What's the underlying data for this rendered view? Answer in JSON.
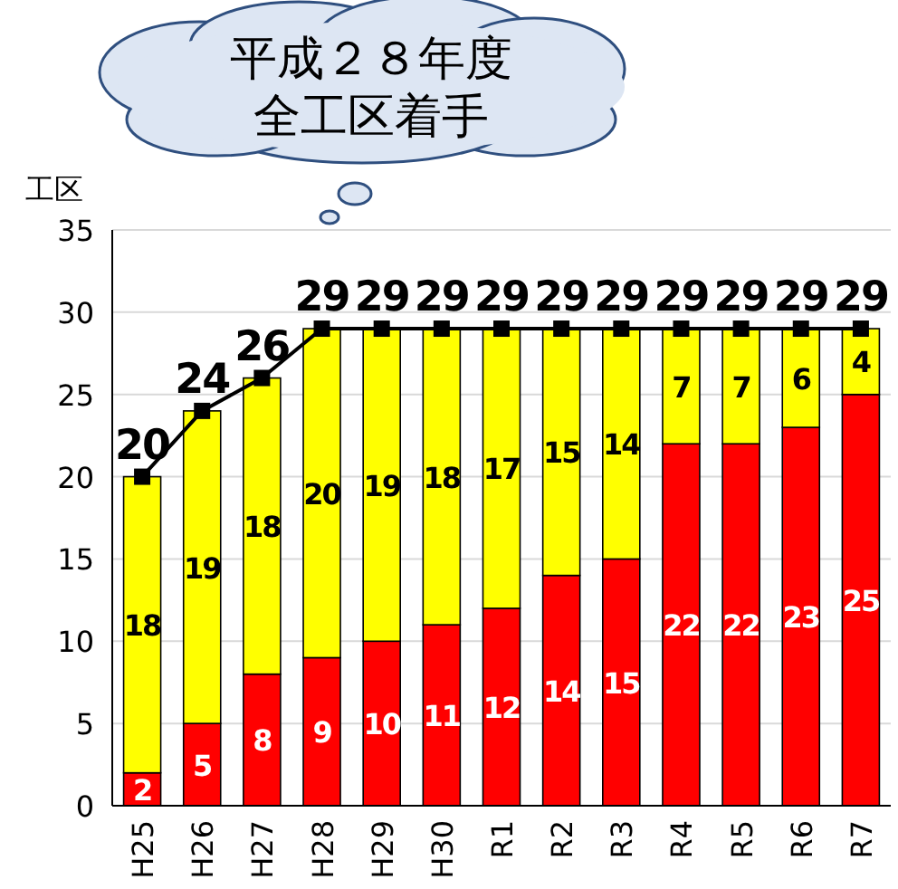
{
  "chart_data": {
    "type": "bar",
    "stacked": true,
    "ylabel": "工区",
    "annotations": [
      "平成２８年度",
      "全工区着手"
    ],
    "categories": [
      "H25",
      "H26",
      "H27",
      "H28",
      "H29",
      "H30",
      "R1",
      "R2",
      "R3",
      "R4",
      "R5",
      "R6",
      "R7"
    ],
    "series": [
      {
        "color": "#ff0000",
        "values": [
          2,
          5,
          8,
          9,
          10,
          11,
          12,
          14,
          15,
          22,
          22,
          23,
          25
        ]
      },
      {
        "color": "#ffff00",
        "values": [
          18,
          19,
          18,
          20,
          19,
          18,
          17,
          15,
          14,
          7,
          7,
          6,
          4
        ]
      },
      {
        "type": "line",
        "color": "#000000",
        "marker": "square",
        "values": [
          20,
          24,
          26,
          29,
          29,
          29,
          29,
          29,
          29,
          29,
          29,
          29,
          29
        ]
      }
    ],
    "ylim": [
      0,
      35
    ],
    "yticks": [
      0,
      5,
      10,
      15,
      20,
      25,
      30,
      35
    ],
    "grid": "y",
    "data_labels": true
  }
}
